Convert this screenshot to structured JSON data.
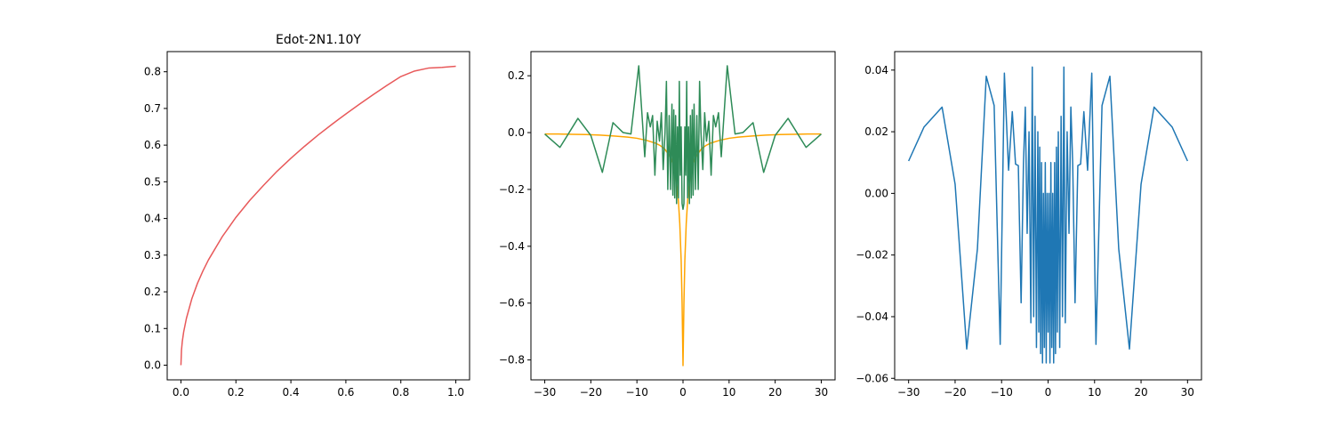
{
  "chart_data": [
    {
      "type": "line",
      "title": "Edot-2N1.10Y",
      "xlabel": "",
      "ylabel": "",
      "xlim": [
        -0.05,
        1.05
      ],
      "ylim": [
        -0.04,
        0.855
      ],
      "xticks": [
        0.0,
        0.2,
        0.4,
        0.6,
        0.8,
        1.0
      ],
      "xtick_labels": [
        "0.0",
        "0.2",
        "0.4",
        "0.6",
        "0.8",
        "1.0"
      ],
      "yticks": [
        0.0,
        0.1,
        0.2,
        0.3,
        0.4,
        0.5,
        0.6,
        0.7,
        0.8
      ],
      "ytick_labels": [
        "0.0",
        "0.1",
        "0.2",
        "0.3",
        "0.4",
        "0.5",
        "0.6",
        "0.7",
        "0.8"
      ],
      "grid": false,
      "series": [
        {
          "color": "#e8595a",
          "x": [
            0.0,
            0.002,
            0.005,
            0.01,
            0.02,
            0.04,
            0.06,
            0.08,
            0.1,
            0.15,
            0.2,
            0.25,
            0.3,
            0.35,
            0.4,
            0.45,
            0.5,
            0.55,
            0.6,
            0.65,
            0.7,
            0.75,
            0.8,
            0.85,
            0.9,
            0.95,
            1.0
          ],
          "y": [
            0.0,
            0.041,
            0.065,
            0.091,
            0.128,
            0.182,
            0.223,
            0.257,
            0.287,
            0.35,
            0.403,
            0.449,
            0.49,
            0.529,
            0.564,
            0.597,
            0.628,
            0.657,
            0.685,
            0.712,
            0.738,
            0.763,
            0.787,
            0.802,
            0.81,
            0.812,
            0.815
          ]
        }
      ]
    },
    {
      "type": "line",
      "title": "",
      "xlabel": "",
      "ylabel": "",
      "xlim": [
        -33,
        33
      ],
      "ylim": [
        -0.87,
        0.285
      ],
      "xticks": [
        -30,
        -20,
        -10,
        0,
        10,
        20,
        30
      ],
      "xtick_labels": [
        "−30",
        "−20",
        "−10",
        "0",
        "10",
        "20",
        "30"
      ],
      "yticks": [
        -0.8,
        -0.6,
        -0.4,
        -0.2,
        0.0,
        0.2
      ],
      "ytick_labels": [
        "−0.8",
        "−0.6",
        "−0.4",
        "−0.2",
        "0.0",
        "0.2"
      ],
      "grid": false,
      "series": [
        {
          "color": "#ffa500",
          "x": [
            -30,
            -27,
            -24,
            -21,
            -18,
            -15,
            -12,
            -10,
            -8,
            -6,
            -5,
            -4,
            -3,
            -2.5,
            -2,
            -1.5,
            -1,
            -0.7,
            -0.4,
            -0.2,
            0,
            0.2,
            0.4,
            0.7,
            1,
            1.5,
            2,
            2.5,
            3,
            4,
            5,
            6,
            8,
            10,
            12,
            15,
            18,
            21,
            24,
            27,
            30
          ],
          "y": [
            -0.005,
            -0.005,
            -0.006,
            -0.007,
            -0.009,
            -0.012,
            -0.016,
            -0.02,
            -0.027,
            -0.037,
            -0.045,
            -0.057,
            -0.08,
            -0.095,
            -0.12,
            -0.16,
            -0.24,
            -0.32,
            -0.45,
            -0.6,
            -0.82,
            -0.6,
            -0.45,
            -0.32,
            -0.24,
            -0.16,
            -0.12,
            -0.095,
            -0.08,
            -0.057,
            -0.045,
            -0.037,
            -0.027,
            -0.02,
            -0.016,
            -0.012,
            -0.009,
            -0.007,
            -0.006,
            -0.005,
            -0.005
          ]
        },
        {
          "color": "#2e8b57",
          "x": [
            -30,
            -26.7,
            -22.8,
            -20,
            -17.5,
            -15.2,
            -13,
            -11.3,
            -9.6,
            -8.3,
            -7.7,
            -7.1,
            -6.6,
            -6.1,
            -5.6,
            -5.1,
            -4.7,
            -4.3,
            -3.9,
            -3.6,
            -3.3,
            -3,
            -2.7,
            -2.4,
            -2.2,
            -2,
            -1.8,
            -1.6,
            -1.4,
            -1.2,
            -1,
            -0.8,
            -0.6,
            -0.4,
            -0.2,
            0,
            0.2,
            0.4,
            0.6,
            0.8,
            1,
            1.2,
            1.4,
            1.6,
            1.8,
            2,
            2.2,
            2.4,
            2.7,
            3,
            3.3,
            3.6,
            3.9,
            4.3,
            4.7,
            5.1,
            5.6,
            6.1,
            6.6,
            7.1,
            7.7,
            8.3,
            9.6,
            11.3,
            13,
            15.2,
            17.5,
            20,
            22.8,
            26.7,
            30
          ],
          "y": [
            -0.005,
            -0.052,
            0.05,
            -0.01,
            -0.14,
            0.035,
            0.0,
            -0.005,
            0.235,
            -0.085,
            0.07,
            0.02,
            0.06,
            -0.15,
            0.04,
            -0.03,
            0.07,
            -0.13,
            0.0,
            0.18,
            -0.2,
            0.06,
            -0.2,
            0.1,
            -0.22,
            0.08,
            -0.23,
            0.06,
            -0.25,
            0.02,
            -0.23,
            0.18,
            -0.15,
            0.02,
            -0.25,
            -0.27,
            -0.25,
            0.02,
            -0.15,
            0.18,
            -0.23,
            0.02,
            -0.25,
            0.06,
            -0.23,
            0.08,
            -0.22,
            0.1,
            -0.2,
            0.06,
            -0.2,
            0.18,
            0.0,
            -0.13,
            0.07,
            -0.03,
            0.04,
            -0.15,
            0.06,
            0.02,
            0.07,
            -0.085,
            0.235,
            -0.005,
            0.0,
            0.035,
            -0.14,
            -0.01,
            0.05,
            -0.052,
            -0.005
          ]
        }
      ]
    },
    {
      "type": "line",
      "title": "",
      "xlabel": "",
      "ylabel": "",
      "xlim": [
        -33,
        33
      ],
      "ylim": [
        -0.0605,
        0.046
      ],
      "xticks": [
        -30,
        -20,
        -10,
        0,
        10,
        20,
        30
      ],
      "xtick_labels": [
        "−30",
        "−20",
        "−10",
        "0",
        "10",
        "20",
        "30"
      ],
      "yticks": [
        -0.06,
        -0.04,
        -0.02,
        0.0,
        0.02,
        0.04
      ],
      "ytick_labels": [
        "−0.06",
        "−0.04",
        "−0.02",
        "0.00",
        "0.02",
        "0.04"
      ],
      "grid": false,
      "series": [
        {
          "color": "#1f77b4",
          "x": [
            -30,
            -26.7,
            -22.8,
            -20,
            -17.5,
            -15.2,
            -13.3,
            -11.6,
            -10.3,
            -9.4,
            -8.5,
            -7.7,
            -7.0,
            -6.4,
            -5.8,
            -5.3,
            -4.9,
            -4.5,
            -4.1,
            -3.7,
            -3.4,
            -3.1,
            -2.8,
            -2.5,
            -2.2,
            -2.0,
            -1.8,
            -1.6,
            -1.4,
            -1.2,
            -1.0,
            -0.8,
            -0.6,
            -0.4,
            -0.2,
            0.0,
            0.2,
            0.4,
            0.6,
            0.8,
            1.0,
            1.2,
            1.4,
            1.6,
            1.8,
            2.0,
            2.2,
            2.5,
            2.8,
            3.1,
            3.4,
            3.7,
            4.1,
            4.5,
            4.9,
            5.3,
            5.8,
            6.4,
            7.0,
            7.7,
            8.5,
            9.4,
            10.3,
            11.6,
            13.3,
            15.2,
            17.5,
            20,
            22.8,
            26.7,
            30
          ],
          "y": [
            0.0105,
            0.0215,
            0.028,
            0.003,
            -0.0505,
            -0.018,
            0.038,
            0.0285,
            -0.049,
            0.039,
            0.0075,
            0.0265,
            0.0095,
            0.009,
            -0.0355,
            0.0095,
            0.028,
            -0.013,
            0.02,
            -0.042,
            0.041,
            -0.04,
            0.025,
            -0.05,
            0.02,
            -0.045,
            0.015,
            -0.052,
            0.01,
            -0.055,
            0.0,
            -0.05,
            0.01,
            -0.055,
            0.0,
            -0.045,
            0.0,
            -0.055,
            0.01,
            -0.05,
            0.0,
            -0.055,
            0.01,
            -0.052,
            0.015,
            -0.045,
            0.02,
            -0.05,
            0.025,
            -0.04,
            0.041,
            -0.042,
            0.02,
            -0.013,
            0.028,
            0.0095,
            -0.0355,
            0.009,
            0.0095,
            0.0265,
            0.0075,
            0.039,
            -0.049,
            0.0285,
            0.038,
            -0.018,
            -0.0505,
            0.003,
            0.028,
            0.0215,
            0.0105
          ]
        }
      ]
    }
  ]
}
